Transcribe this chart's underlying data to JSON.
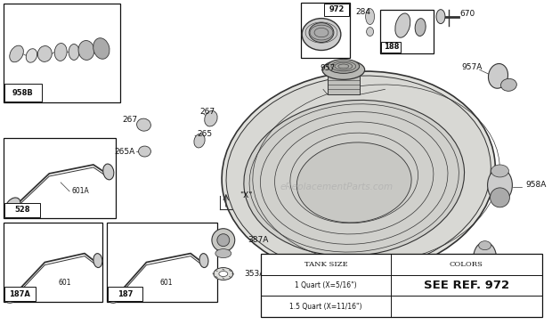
{
  "bg_color": "#ffffff",
  "line_color": "#333333",
  "box_color": "#111111",
  "watermark": "eReplacementParts.com",
  "tank_table": {
    "headers": [
      "TANK SIZE",
      "COLORS"
    ],
    "rows": [
      [
        "1 Quart (X=5/16\")",
        "SEE REF. 972"
      ],
      [
        "1.5 Quart (X=11/16\")",
        ""
      ]
    ]
  }
}
